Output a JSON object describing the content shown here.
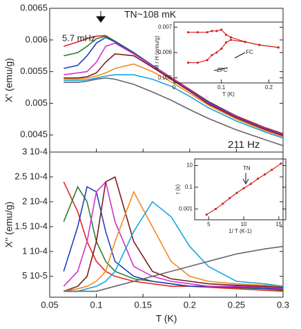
{
  "chart_data": [
    {
      "type": "line",
      "ylabel": "X' (emu/g)",
      "x": [
        0.065,
        0.08,
        0.09,
        0.1,
        0.11,
        0.12,
        0.14,
        0.16,
        0.18,
        0.2,
        0.22,
        0.25,
        0.28,
        0.3
      ],
      "xlim": [
        0.05,
        0.3
      ],
      "ylim": [
        0.00423,
        0.0065
      ],
      "yticks": [
        0.0045,
        0.005,
        0.0055,
        0.006,
        0.0065
      ],
      "annotations": [
        "TN~108 mK",
        "5.7 mHz",
        "211 Hz"
      ],
      "series": [
        {
          "color": "#e8231f",
          "values": [
            0.0059,
            0.00597,
            0.00602,
            0.00606,
            0.00607,
            0.00598,
            0.0058,
            0.0056,
            0.00541,
            0.00522,
            0.00503,
            0.0048,
            0.00462,
            0.00452
          ]
        },
        {
          "color": "#2f7d2f",
          "values": [
            0.00575,
            0.0058,
            0.0059,
            0.00602,
            0.00606,
            0.00598,
            0.0058,
            0.0056,
            0.0054,
            0.00521,
            0.00502,
            0.00479,
            0.00461,
            0.00451
          ]
        },
        {
          "color": "#1f3fbf",
          "values": [
            0.00555,
            0.0056,
            0.00575,
            0.00595,
            0.00604,
            0.00597,
            0.00579,
            0.0056,
            0.0054,
            0.00521,
            0.00502,
            0.00479,
            0.00461,
            0.00451
          ]
        },
        {
          "color": "#cc33cc",
          "values": [
            0.00545,
            0.00548,
            0.0055,
            0.00565,
            0.0059,
            0.00595,
            0.00578,
            0.00559,
            0.0054,
            0.0052,
            0.005,
            0.00478,
            0.0046,
            0.0045
          ]
        },
        {
          "color": "#7b1c1c",
          "values": [
            0.0054,
            0.0054,
            0.00542,
            0.00548,
            0.00565,
            0.00578,
            0.00575,
            0.00557,
            0.00538,
            0.00519,
            0.00499,
            0.00477,
            0.00459,
            0.00449
          ]
        },
        {
          "color": "#f08a1d",
          "values": [
            0.00538,
            0.00538,
            0.0054,
            0.00543,
            0.00548,
            0.00555,
            0.00562,
            0.0055,
            0.00534,
            0.00516,
            0.00497,
            0.00475,
            0.00457,
            0.00447
          ]
        },
        {
          "color": "#14a5e0",
          "values": [
            0.00536,
            0.00536,
            0.00537,
            0.0054,
            0.00543,
            0.00545,
            0.00545,
            0.00538,
            0.00527,
            0.00511,
            0.00493,
            0.00472,
            0.00455,
            0.00445
          ]
        },
        {
          "color": "#666666",
          "values": [
            0.00533,
            0.00533,
            0.00535,
            0.00538,
            0.0054,
            0.00538,
            0.0053,
            0.00518,
            0.00505,
            0.0049,
            0.00476,
            0.00458,
            0.00443,
            0.00433
          ]
        }
      ]
    },
    {
      "type": "line",
      "ylabel": "X'' (emu/g)",
      "xlabel": "T (K)",
      "x": [
        0.065,
        0.08,
        0.09,
        0.1,
        0.11,
        0.12,
        0.14,
        0.16,
        0.18,
        0.2,
        0.22,
        0.25,
        0.28,
        0.3
      ],
      "xlim": [
        0.05,
        0.3
      ],
      "ylim": [
        8e-06,
        0.0003
      ],
      "xticks": [
        0.05,
        0.1,
        0.15,
        0.2,
        0.25,
        0.3
      ],
      "yticks": [
        {
          "value": 5e-05,
          "label": "5 10-5"
        },
        {
          "value": 0.0001,
          "label": "1 10-4"
        },
        {
          "value": 0.00015,
          "label": "1.5 10-4"
        },
        {
          "value": 0.0002,
          "label": "2 10-4"
        },
        {
          "value": 0.00025,
          "label": "2.5 10-4"
        },
        {
          "value": 0.0003,
          "label": "3 10-4"
        }
      ],
      "series": [
        {
          "color": "#e8231f",
          "values": [
            0.00024,
            0.00018,
            0.00012,
            8e-05,
            6e-05,
            5e-05,
            4e-05,
            3.5e-05,
            3e-05,
            3e-05,
            2.8e-05,
            2.5e-05,
            2.2e-05,
            2e-05
          ]
        },
        {
          "color": "#2f7d2f",
          "values": [
            0.00016,
            0.00023,
            0.0002,
            0.00012,
            8e-05,
            6e-05,
            4.5e-05,
            4e-05,
            3.5e-05,
            3e-05,
            3e-05,
            2.7e-05,
            2.5e-05,
            2.2e-05
          ]
        },
        {
          "color": "#1f3fbf",
          "values": [
            6e-05,
            0.00015,
            0.00023,
            0.00022,
            0.00014,
            8e-05,
            5e-05,
            4e-05,
            3.5e-05,
            3e-05,
            3e-05,
            2.8e-05,
            2.6e-05,
            2.4e-05
          ]
        },
        {
          "color": "#cc33cc",
          "values": [
            3e-05,
            6e-05,
            0.00012,
            0.00022,
            0.00024,
            0.00016,
            7e-05,
            5e-05,
            4e-05,
            3.5e-05,
            3e-05,
            3e-05,
            2.8e-05,
            2.6e-05
          ]
        },
        {
          "color": "#7b1c1c",
          "values": [
            2e-05,
            3e-05,
            5e-05,
            0.00012,
            0.00024,
            0.00025,
            0.00012,
            6e-05,
            4.5e-05,
            4e-05,
            3.5e-05,
            3.2e-05,
            3e-05,
            2.8e-05
          ]
        },
        {
          "color": "#f08a1d",
          "values": [
            2e-05,
            2.5e-05,
            3e-05,
            4e-05,
            6e-05,
            0.00012,
            0.00022,
            0.00015,
            8e-05,
            5e-05,
            4e-05,
            3.5e-05,
            3.2e-05,
            3e-05
          ]
        },
        {
          "color": "#14a5e0",
          "values": [
            2e-05,
            2e-05,
            2.5e-05,
            3e-05,
            4e-05,
            6e-05,
            0.00014,
            0.0002,
            0.00017,
            0.00011,
            7e-05,
            4e-05,
            3.5e-05,
            3e-05
          ]
        },
        {
          "color": "#666666",
          "values": [
            2e-05,
            2e-05,
            2e-05,
            2e-05,
            2.5e-05,
            3e-05,
            4e-05,
            5e-05,
            6e-05,
            7e-05,
            8e-05,
            9.5e-05,
            0.000105,
            0.00011
          ]
        }
      ]
    },
    {
      "type": "line",
      "ylabel": "M / H (emu/g)",
      "xlabel": "T (K)",
      "x": [
        0.03,
        0.05,
        0.07,
        0.08,
        0.09,
        0.1,
        0.11,
        0.12,
        0.15,
        0.18,
        0.22
      ],
      "xlim": [
        0,
        0.23
      ],
      "ylim": [
        0.0048,
        0.0072
      ],
      "xticks": [
        0,
        0.1,
        0.2
      ],
      "yticks": [
        0.005,
        0.006,
        0.007
      ],
      "annotations": [
        "FC",
        "ZFC"
      ],
      "series": [
        {
          "color": "#d42020",
          "values": [
            0.0068,
            0.0068,
            0.0068,
            0.00685,
            0.00685,
            0.0069,
            0.0067,
            0.0066,
            0.00642,
            0.0063,
            0.0062
          ]
        },
        {
          "color": "#d42020",
          "values": [
            0.0056,
            0.0056,
            0.0057,
            0.0059,
            0.006,
            0.00615,
            0.0064,
            0.0065,
            0.00642,
            0.0063,
            0.0062
          ]
        }
      ]
    },
    {
      "type": "line",
      "ylabel": "τ (s)",
      "xlabel": "1/ T (K-1)",
      "ylog": true,
      "x": [
        4.7,
        6,
        7,
        8,
        9,
        10,
        11,
        12,
        13,
        14,
        15.3
      ],
      "xlim": [
        3,
        16
      ],
      "ylim": [
        0.0001,
        40
      ],
      "xticks": [
        5,
        10,
        15
      ],
      "yticks": [
        0.001,
        0.1,
        10
      ],
      "annotations": [
        "TN"
      ],
      "series": [
        {
          "color": "#d42020",
          "marker": true,
          "values": [
            0.0003,
            0.001,
            0.003,
            0.01,
            0.03,
            0.08,
            0.2,
            0.6,
            1.5,
            4,
            15
          ]
        }
      ]
    }
  ]
}
